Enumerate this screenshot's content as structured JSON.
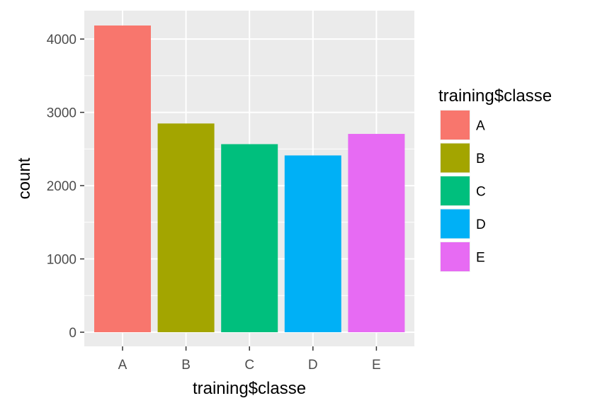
{
  "chart_data": {
    "type": "bar",
    "xlabel": "training$classe",
    "ylabel": "count",
    "categories": [
      "A",
      "B",
      "C",
      "D",
      "E"
    ],
    "values": [
      4185,
      2848,
      2566,
      2412,
      2706
    ],
    "colors": [
      "#F8766D",
      "#A3A500",
      "#00BF7D",
      "#00B0F6",
      "#E76BF3"
    ],
    "ylim": [
      0,
      4185
    ],
    "yticks": [
      0,
      1000,
      2000,
      3000,
      4000
    ],
    "grid": true,
    "panel_background": "#EBEBEB",
    "legend": {
      "title": "training$classe",
      "placement": "right",
      "entries": [
        "A",
        "B",
        "C",
        "D",
        "E"
      ]
    }
  }
}
